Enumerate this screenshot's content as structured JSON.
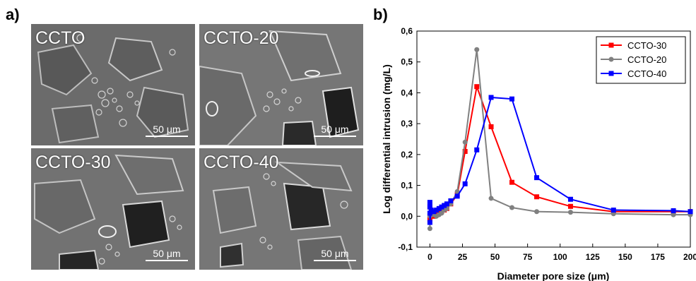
{
  "panels": {
    "a_label": "a)",
    "b_label": "b)"
  },
  "sem_images": [
    {
      "title": "CCTO",
      "scale": "50 μm"
    },
    {
      "title": "CCTO-20",
      "scale": "50 μm"
    },
    {
      "title": "CCTO-30",
      "scale": "50 μm"
    },
    {
      "title": "CCTO-40",
      "scale": "50 μm"
    }
  ],
  "chart_data": {
    "type": "line",
    "title": "",
    "xlabel": "Diameter pore size (μm)",
    "ylabel": "Log differential intrusion (mg/L)",
    "xlim": [
      -10,
      200
    ],
    "ylim": [
      -0.1,
      0.6
    ],
    "xticks": [
      0,
      25,
      50,
      75,
      100,
      125,
      150,
      175,
      200
    ],
    "yticks": [
      -0.1,
      0.0,
      0.1,
      0.2,
      0.3,
      0.4,
      0.5,
      0.6
    ],
    "ytick_labels": [
      "-0,1",
      "0,0",
      "0,1",
      "0,2",
      "0,3",
      "0,4",
      "0,5",
      "0,6"
    ],
    "legend_position": "top-right",
    "series": [
      {
        "name": "CCTO-30",
        "color": "#ff0000",
        "marker": "square",
        "x": [
          0,
          0,
          0,
          1,
          3,
          5,
          7,
          9,
          11,
          13,
          16,
          21,
          27,
          36,
          47,
          63,
          82,
          108,
          141,
          187,
          200
        ],
        "y": [
          0.0,
          0.03,
          -0.01,
          0.01,
          0.0,
          0.005,
          0.01,
          0.015,
          0.02,
          0.025,
          0.04,
          0.07,
          0.21,
          0.42,
          0.29,
          0.11,
          0.063,
          0.032,
          0.015,
          0.015,
          0.015
        ]
      },
      {
        "name": "CCTO-20",
        "color": "#808080",
        "marker": "circle",
        "x": [
          0,
          0,
          1,
          3,
          5,
          7,
          9,
          11,
          13,
          16,
          21,
          27,
          36,
          47,
          63,
          82,
          108,
          141,
          187,
          200
        ],
        "y": [
          -0.04,
          0.0,
          0.005,
          0.005,
          0.0,
          0.005,
          0.01,
          0.02,
          0.025,
          0.04,
          0.08,
          0.24,
          0.54,
          0.058,
          0.028,
          0.015,
          0.013,
          0.008,
          0.005,
          0.005
        ]
      },
      {
        "name": "CCTO-40",
        "color": "#0000ff",
        "marker": "square",
        "x": [
          0,
          0,
          0,
          0,
          1,
          3,
          5,
          7,
          9,
          11,
          13,
          16,
          21,
          27,
          36,
          47,
          63,
          82,
          108,
          141,
          187,
          200
        ],
        "y": [
          0.045,
          0.03,
          0.01,
          -0.02,
          0.02,
          0.015,
          0.02,
          0.025,
          0.03,
          0.035,
          0.04,
          0.05,
          0.065,
          0.105,
          0.215,
          0.385,
          0.38,
          0.125,
          0.055,
          0.02,
          0.018,
          0.015
        ]
      }
    ]
  }
}
